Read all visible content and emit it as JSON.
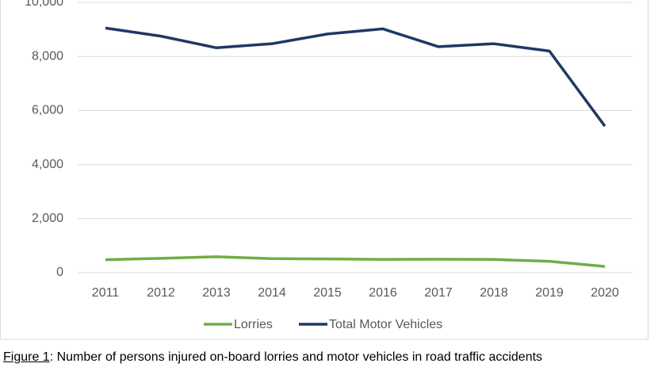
{
  "chart_data": {
    "type": "line",
    "categories": [
      "2011",
      "2012",
      "2013",
      "2014",
      "2015",
      "2016",
      "2017",
      "2018",
      "2019",
      "2020"
    ],
    "series": [
      {
        "name": "Lorries",
        "color": "#70ad47",
        "values": [
          480,
          530,
          590,
          520,
          510,
          490,
          500,
          490,
          420,
          230
        ]
      },
      {
        "name": "Total Motor Vehicles",
        "color": "#1f3864",
        "values": [
          9050,
          8750,
          8320,
          8470,
          8830,
          9020,
          8360,
          8470,
          8200,
          5420
        ]
      }
    ],
    "ylim": [
      0,
      10000
    ],
    "yticks": [
      0,
      {
        "value": 2000,
        "label": "2,000"
      },
      {
        "value": 4000,
        "label": "4,000"
      },
      {
        "value": 6000,
        "label": "6,000"
      },
      {
        "value": 8000,
        "label": "8,000"
      },
      {
        "value": 10000,
        "label": "10,000"
      }
    ],
    "grid": true,
    "legend": "bottom",
    "caption_label": "Figure 1",
    "caption_text": ": Number of persons injured on-board lorries and motor vehicles in road traffic accidents"
  }
}
